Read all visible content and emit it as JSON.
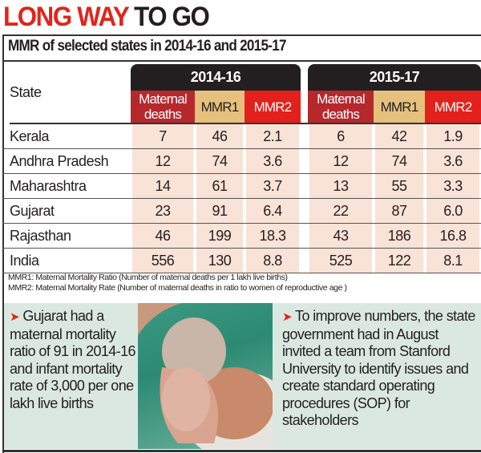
{
  "title": {
    "part1": "LONG WAY",
    "part2": "TO GO"
  },
  "subtitle": "MMR of selected states in 2014-16 and 2015-17",
  "colors": {
    "title_red": "#e2231a",
    "maternal_deaths": "#b5282c",
    "mmr1": "#e6c07c",
    "mmr2": "#e3201b",
    "period_header": "#231f20",
    "cell_bg": "#f9e2d6",
    "panel_bg": "#dbe8e2"
  },
  "chart_data": {
    "type": "table",
    "title": "MMR of selected states in 2014-16 and 2015-17",
    "row_header": "State",
    "periods": [
      "2014-16",
      "2015-17"
    ],
    "columns": [
      "Maternal deaths",
      "MMR1",
      "MMR2"
    ],
    "rows": [
      {
        "state": "Kerala",
        "values": [
          "7",
          "46",
          "2.1",
          "6",
          "42",
          "1.9"
        ]
      },
      {
        "state": "Andhra Pradesh",
        "values": [
          "12",
          "74",
          "3.6",
          "12",
          "74",
          "3.6"
        ]
      },
      {
        "state": "Maharashtra",
        "values": [
          "14",
          "61",
          "3.7",
          "13",
          "55",
          "3.3"
        ]
      },
      {
        "state": "Gujarat",
        "values": [
          "23",
          "91",
          "6.4",
          "22",
          "87",
          "6.0"
        ]
      },
      {
        "state": "Rajasthan",
        "values": [
          "46",
          "199",
          "18.3",
          "43",
          "186",
          "16.8"
        ]
      },
      {
        "state": "India",
        "values": [
          "556",
          "130",
          "8.8",
          "525",
          "122",
          "8.1"
        ]
      }
    ]
  },
  "notes": [
    "MMR1: Maternal Mortality Ratio (Number of maternal deaths per 1 lakh live births)",
    "MMR2: Maternal Mortality Rate (Number of maternal deaths in ratio to women of reproductive age )"
  ],
  "bullets": [
    "Gujarat had a maternal mortality ratio of 91 in 2014-16 and infant mortality rate of 3,000 per one lakh live births",
    "To improve numbers, the state government had in August invited a team from Stanford University to identify issues and create standard operating procedures (SOP) for stakeholders"
  ],
  "icons": {
    "bullet": "red-arrow-icon"
  }
}
